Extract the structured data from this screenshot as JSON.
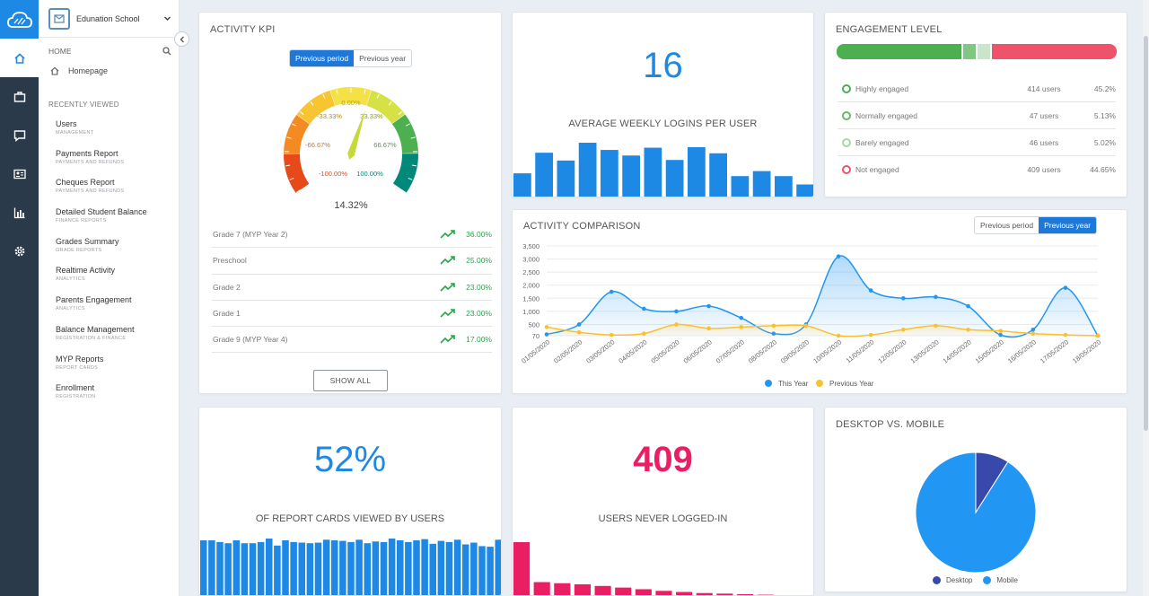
{
  "sidebar": {
    "school_name": "Edunation School",
    "home_header": "HOME",
    "homepage": "Homepage",
    "recently_viewed": "RECENTLY VIEWED",
    "items": [
      {
        "title": "Users",
        "sub": "MANAGEMENT"
      },
      {
        "title": "Payments Report",
        "sub": "PAYMENTS AND REFUNDS"
      },
      {
        "title": "Cheques Report",
        "sub": "PAYMENTS AND REFUNDS"
      },
      {
        "title": "Detailed Student Balance",
        "sub": "FINANCE REPORTS"
      },
      {
        "title": "Grades Summary",
        "sub": "GRADE REPORTS"
      },
      {
        "title": "Realtime Activity",
        "sub": "ANALYTICS"
      },
      {
        "title": "Parents Engagement",
        "sub": "ANALYTICS"
      },
      {
        "title": "Balance Management",
        "sub": "REGISTRATION & FINANCE"
      },
      {
        "title": "MYP Reports",
        "sub": "REPORT CARDS"
      },
      {
        "title": "Enrollment",
        "sub": "REGISTRATION"
      }
    ]
  },
  "activity_kpi": {
    "title": "ACTIVITY KPI",
    "toggle": [
      "Previous period",
      "Previous year"
    ],
    "gauge_labels": {
      "top": "0.00%",
      "ul": "-33.33%",
      "ur": "33.33%",
      "ml": "-66.67%",
      "mr": "66.67%",
      "bl": "-100.00%",
      "br": "100.00%"
    },
    "value": "14.32%",
    "rows": [
      {
        "label": "Grade 7 (MYP Year 2)",
        "value": "36.00%"
      },
      {
        "label": "Preschool",
        "value": "25.00%"
      },
      {
        "label": "Grade 2",
        "value": "23.00%"
      },
      {
        "label": "Grade 1",
        "value": "23.00%"
      },
      {
        "label": "Grade 9 (MYP Year 4)",
        "value": "17.00%"
      }
    ],
    "show_all": "SHOW ALL"
  },
  "logins": {
    "value": "16",
    "label": "AVERAGE WEEKLY LOGINS PER USER",
    "bars": [
      0.45,
      0.82,
      0.68,
      1.0,
      0.87,
      0.77,
      0.91,
      0.69,
      0.92,
      0.81,
      0.4,
      0.49,
      0.4,
      0.25
    ]
  },
  "engagement": {
    "title": "ENGAGEMENT LEVEL",
    "rows": [
      {
        "name": "Highly engaged",
        "users": "414 users",
        "pct": "45.2%",
        "color": "#4caf50"
      },
      {
        "name": "Normally engaged",
        "users": "47 users",
        "pct": "5.13%",
        "color": "#66bb6a"
      },
      {
        "name": "Barely engaged",
        "users": "46 users",
        "pct": "5.02%",
        "color": "#a5d6a7"
      },
      {
        "name": "Not engaged",
        "users": "409 users",
        "pct": "44.65%",
        "color": "#ef5369"
      }
    ]
  },
  "comparison": {
    "title": "ACTIVITY COMPARISON",
    "toggle": [
      "Previous period",
      "Previous year"
    ],
    "legend": [
      "This Year",
      "Previous Year"
    ]
  },
  "chart_data": [
    {
      "type": "area",
      "title": "ACTIVITY COMPARISON",
      "categories": [
        "01/05/2020",
        "02/05/2020",
        "03/05/2020",
        "04/05/2020",
        "05/05/2020",
        "06/05/2020",
        "07/05/2020",
        "08/05/2020",
        "09/05/2020",
        "10/05/2020",
        "11/05/2020",
        "12/05/2020",
        "13/05/2020",
        "14/05/2020",
        "15/05/2020",
        "16/05/2020",
        "17/05/2020",
        "18/05/2020"
      ],
      "yticks": [
        "70",
        "500",
        "1,000",
        "1,500",
        "2,000",
        "2,500",
        "3,000",
        "3,500"
      ],
      "ylim": [
        70,
        3500
      ],
      "series": [
        {
          "name": "This Year",
          "color": "#2196f3",
          "values": [
            120,
            500,
            1750,
            1100,
            1000,
            1200,
            750,
            150,
            500,
            3100,
            1800,
            1500,
            1550,
            1200,
            100,
            300,
            1900,
            70
          ]
        },
        {
          "name": "Previous Year",
          "color": "#fbc02d",
          "values": [
            400,
            200,
            100,
            150,
            500,
            350,
            400,
            450,
            450,
            70,
            100,
            300,
            450,
            300,
            250,
            150,
            100,
            70
          ]
        }
      ]
    },
    {
      "type": "pie",
      "title": "DESKTOP VS. MOBILE",
      "categories": [
        "Desktop",
        "Mobile"
      ],
      "values": [
        9,
        91
      ],
      "colors": [
        "#3949ab",
        "#2196f3"
      ]
    }
  ],
  "report_cards": {
    "value": "52%",
    "label": "OF REPORT CARDS VIEWED BY USERS",
    "bars": [
      0.97,
      0.97,
      0.94,
      0.92,
      0.97,
      0.92,
      0.92,
      0.94,
      1.0,
      0.88,
      0.97,
      0.94,
      0.93,
      0.92,
      0.93,
      0.98,
      0.97,
      0.96,
      0.94,
      0.98,
      0.92,
      0.95,
      0.94,
      1.0,
      0.97,
      0.94,
      0.97,
      0.99,
      0.91,
      0.96,
      0.94,
      0.98,
      0.9,
      0.93,
      0.87,
      0.86,
      0.98
    ]
  },
  "never_logged": {
    "value": "409",
    "label": "USERS NEVER LOGGED-IN",
    "bars": [
      1.0,
      0.27,
      0.25,
      0.23,
      0.2,
      0.17,
      0.14,
      0.11,
      0.09,
      0.07,
      0.06,
      0.05,
      0.04,
      0.03,
      0.02
    ]
  },
  "desktop_mobile": {
    "title": "DESKTOP VS. MOBILE",
    "legend": [
      "Desktop",
      "Mobile"
    ]
  },
  "colors": {
    "accent": "#1e78d8",
    "rail": "#2b3a4a",
    "pink": "#e91e63",
    "green": "#27a64a"
  }
}
